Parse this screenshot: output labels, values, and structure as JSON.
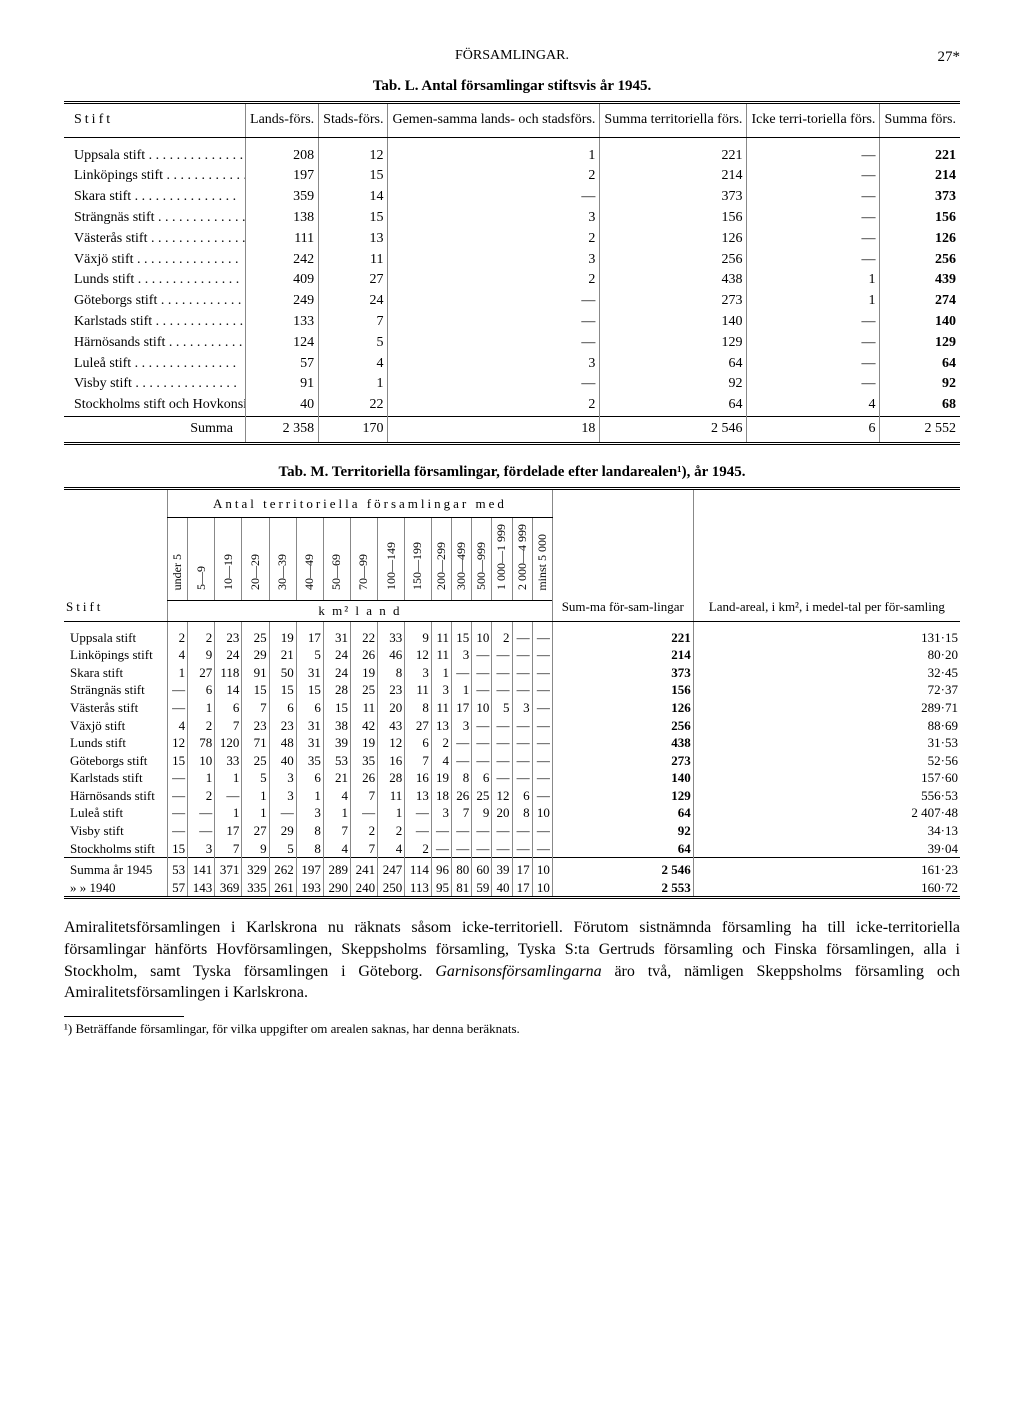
{
  "page": {
    "running_head": "FÖRSAMLINGAR.",
    "page_number": "27*"
  },
  "tableL": {
    "caption": "Tab. L.   Antal församlingar stiftsvis år 1945.",
    "columns": [
      "Stift",
      "Lands-förs.",
      "Stads-förs.",
      "Gemen-samma lands- och stadsförs.",
      "Summa territoriella förs.",
      "Icke terri-toriella förs.",
      "Summa förs."
    ],
    "rows": [
      {
        "name": "Uppsala stift",
        "c": [
          208,
          12,
          1,
          221,
          "—",
          221
        ]
      },
      {
        "name": "Linköpings stift",
        "c": [
          197,
          15,
          2,
          214,
          "—",
          214
        ]
      },
      {
        "name": "Skara stift",
        "c": [
          359,
          14,
          "—",
          373,
          "—",
          373
        ]
      },
      {
        "name": "Strängnäs stift",
        "c": [
          138,
          15,
          3,
          156,
          "—",
          156
        ]
      },
      {
        "name": "Västerås stift",
        "c": [
          111,
          13,
          2,
          126,
          "—",
          126
        ]
      },
      {
        "name": "Växjö stift",
        "c": [
          242,
          11,
          3,
          256,
          "—",
          256
        ]
      },
      {
        "name": "Lunds stift",
        "c": [
          409,
          27,
          2,
          438,
          1,
          439
        ]
      },
      {
        "name": "Göteborgs stift",
        "c": [
          249,
          24,
          "—",
          273,
          1,
          274
        ]
      },
      {
        "name": "Karlstads stift",
        "c": [
          133,
          7,
          "—",
          140,
          "—",
          140
        ]
      },
      {
        "name": "Härnösands stift",
        "c": [
          124,
          5,
          "—",
          129,
          "—",
          129
        ]
      },
      {
        "name": "Luleå stift",
        "c": [
          57,
          4,
          3,
          64,
          "—",
          64
        ]
      },
      {
        "name": "Visby stift",
        "c": [
          91,
          1,
          "—",
          92,
          "—",
          92
        ]
      },
      {
        "name": "Stockholms stift och Hovkonsistorium",
        "c": [
          40,
          22,
          2,
          64,
          4,
          68
        ]
      }
    ],
    "sum": {
      "label": "Summa",
      "c": [
        "2 358",
        170,
        18,
        "2 546",
        6,
        "2 552"
      ]
    }
  },
  "tableM": {
    "caption": "Tab. M.   Territoriella församlingar, fördelade efter landarealen¹), år 1945.",
    "span_header": "Antal territoriella församlingar med",
    "range_headers": [
      "under 5",
      "5—9",
      "10—19",
      "20—29",
      "30—39",
      "40—49",
      "50—69",
      "70—99",
      "100—149",
      "150—199",
      "200—299",
      "300—499",
      "500—999",
      "1 000—1 999",
      "2 000—4 999",
      "minst 5 000"
    ],
    "sum_header": "Sum-ma för-sam-lingar",
    "area_header": "Land-areal, i km², i medel-tal per för-samling",
    "unit_label": "k m²   l a n d",
    "stift_label": "Stift",
    "rows": [
      {
        "name": "Uppsala stift",
        "c": [
          "2",
          "2",
          "23",
          "25",
          "19",
          "17",
          "31",
          "22",
          "33",
          "9",
          "11",
          "15",
          "10",
          "2",
          "—",
          "—"
        ],
        "sum": "221",
        "area": "131·15"
      },
      {
        "name": "Linköpings stift",
        "c": [
          "4",
          "9",
          "24",
          "29",
          "21",
          "5",
          "24",
          "26",
          "46",
          "12",
          "11",
          "3",
          "—",
          "—",
          "—",
          "—"
        ],
        "sum": "214",
        "area": "80·20"
      },
      {
        "name": "Skara stift",
        "c": [
          "1",
          "27",
          "118",
          "91",
          "50",
          "31",
          "24",
          "19",
          "8",
          "3",
          "1",
          "—",
          "—",
          "—",
          "—",
          "—"
        ],
        "sum": "373",
        "area": "32·45"
      },
      {
        "name": "Strängnäs stift",
        "c": [
          "—",
          "6",
          "14",
          "15",
          "15",
          "15",
          "28",
          "25",
          "23",
          "11",
          "3",
          "1",
          "—",
          "—",
          "—",
          "—"
        ],
        "sum": "156",
        "area": "72·37"
      },
      {
        "name": "Västerås stift",
        "c": [
          "—",
          "1",
          "6",
          "7",
          "6",
          "6",
          "15",
          "11",
          "20",
          "8",
          "11",
          "17",
          "10",
          "5",
          "3",
          "—"
        ],
        "sum": "126",
        "area": "289·71"
      },
      {
        "name": "Växjö stift",
        "c": [
          "4",
          "2",
          "7",
          "23",
          "23",
          "31",
          "38",
          "42",
          "43",
          "27",
          "13",
          "3",
          "—",
          "—",
          "—",
          "—"
        ],
        "sum": "256",
        "area": "88·69"
      },
      {
        "name": "Lunds stift",
        "c": [
          "12",
          "78",
          "120",
          "71",
          "48",
          "31",
          "39",
          "19",
          "12",
          "6",
          "2",
          "—",
          "—",
          "—",
          "—",
          "—"
        ],
        "sum": "438",
        "area": "31·53"
      },
      {
        "name": "Göteborgs stift",
        "c": [
          "15",
          "10",
          "33",
          "25",
          "40",
          "35",
          "53",
          "35",
          "16",
          "7",
          "4",
          "—",
          "—",
          "—",
          "—",
          "—"
        ],
        "sum": "273",
        "area": "52·56"
      },
      {
        "name": "Karlstads stift",
        "c": [
          "—",
          "1",
          "1",
          "5",
          "3",
          "6",
          "21",
          "26",
          "28",
          "16",
          "19",
          "8",
          "6",
          "—",
          "—",
          "—"
        ],
        "sum": "140",
        "area": "157·60"
      },
      {
        "name": "Härnösands stift",
        "c": [
          "—",
          "2",
          "—",
          "1",
          "3",
          "1",
          "4",
          "7",
          "11",
          "13",
          "18",
          "26",
          "25",
          "12",
          "6",
          "—"
        ],
        "sum": "129",
        "area": "556·53"
      },
      {
        "name": "Luleå stift",
        "c": [
          "—",
          "—",
          "1",
          "1",
          "—",
          "3",
          "1",
          "—",
          "1",
          "—",
          "3",
          "7",
          "9",
          "20",
          "8",
          "10"
        ],
        "sum": "64",
        "area": "2 407·48"
      },
      {
        "name": "Visby stift",
        "c": [
          "—",
          "—",
          "17",
          "27",
          "29",
          "8",
          "7",
          "2",
          "2",
          "—",
          "—",
          "—",
          "—",
          "—",
          "—",
          "—"
        ],
        "sum": "92",
        "area": "34·13"
      },
      {
        "name": "Stockholms stift",
        "c": [
          "15",
          "3",
          "7",
          "9",
          "5",
          "8",
          "4",
          "7",
          "4",
          "2",
          "—",
          "—",
          "—",
          "—",
          "—",
          "—"
        ],
        "sum": "64",
        "area": "39·04"
      }
    ],
    "sum1945": {
      "label": "Summa år 1945",
      "c": [
        "53",
        "141",
        "371",
        "329",
        "262",
        "197",
        "289",
        "241",
        "247",
        "114",
        "96",
        "80",
        "60",
        "39",
        "17",
        "10"
      ],
      "sum": "2 546",
      "area": "161·23"
    },
    "sum1940": {
      "label": "»       » 1940",
      "c": [
        "57",
        "143",
        "369",
        "335",
        "261",
        "193",
        "290",
        "240",
        "250",
        "113",
        "95",
        "81",
        "59",
        "40",
        "17",
        "10"
      ],
      "sum": "2 553",
      "area": "160·72"
    }
  },
  "body": {
    "text": "Amiralitetsförsamlingen i Karlskrona nu räknats såsom icke-territoriell. Förutom sistnämnda församling ha till icke-territoriella församlingar hänförts Hovförsamlingen, Skeppsholms församling, Tyska S:ta Gertruds församling och Finska församlingen, alla i Stockholm, samt Tyska församlingen i Göteborg. <i>Garnisonsförsamlingarna</i> äro två, nämligen Skeppsholms församling och Amiralitetsförsamlingen i Karlskrona."
  },
  "footnote": {
    "text": "¹) Beträffande församlingar, för vilka uppgifter om arealen saknas, har denna beräknats."
  }
}
